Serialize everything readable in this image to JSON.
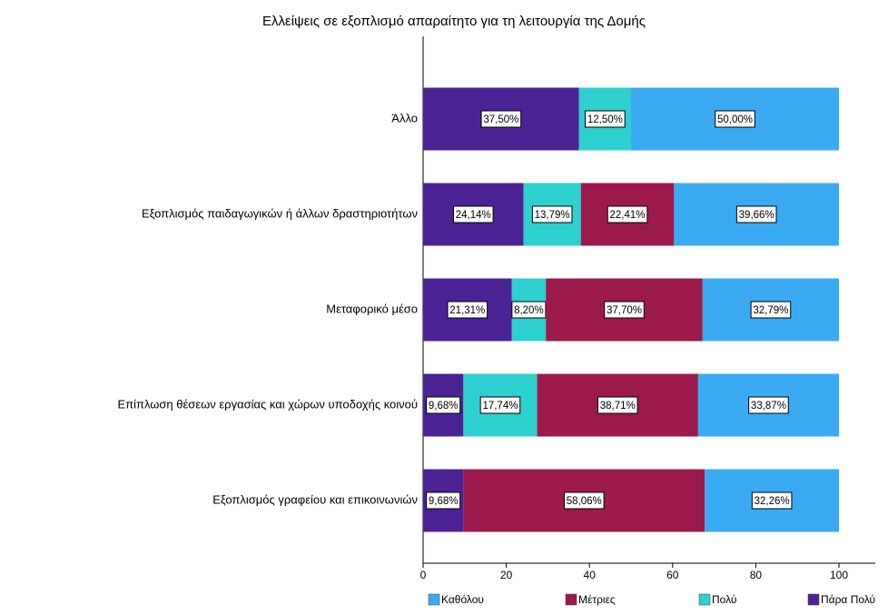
{
  "chart_data": {
    "type": "stacked_barh",
    "title": "Ελλείψεις σε εξοπλισμό απαραίτητο για τη λειτουργία της Δομής",
    "categories": [
      "Άλλο",
      "Εξοπλισμός παιδαγωγικών ή άλλων δραστηριοτήτων",
      "Μεταφορικό μέσο",
      "Επίπλωση θέσεων εργασίας και χώρων υποδοχής κοινού",
      "Εξοπλισμός γραφείου και επικοινωνιών"
    ],
    "series": [
      {
        "name": "Καθόλου",
        "color": "#3aabf2",
        "values": [
          50.0,
          39.66,
          32.79,
          33.87,
          32.26
        ],
        "value_labels": [
          "50,00%",
          "39,66%",
          "32,79%",
          "33,87%",
          "32,26%"
        ]
      },
      {
        "name": "Μέτριες",
        "color": "#9c1a4b",
        "values": [
          null,
          22.41,
          37.7,
          38.71,
          58.06
        ],
        "value_labels": [
          null,
          "22,41%",
          "37,70%",
          "38,71%",
          "58,06%"
        ]
      },
      {
        "name": "Πολύ",
        "color": "#2ecfcf",
        "values": [
          12.5,
          13.79,
          8.2,
          17.74,
          null
        ],
        "value_labels": [
          "12,50%",
          "13,79%",
          "8,20%",
          "17,74%",
          null
        ]
      },
      {
        "name": "Πάρα Πολύ",
        "color": "#4c2394",
        "values": [
          37.5,
          24.14,
          21.31,
          9.68,
          9.68
        ],
        "value_labels": [
          "37,50%",
          "24,14%",
          "21,31%",
          "9,68%",
          "9,68%"
        ]
      }
    ],
    "xlim": [
      0,
      100
    ],
    "xticks": [
      0,
      20,
      40,
      60,
      80,
      100
    ],
    "legend": "bottom"
  }
}
